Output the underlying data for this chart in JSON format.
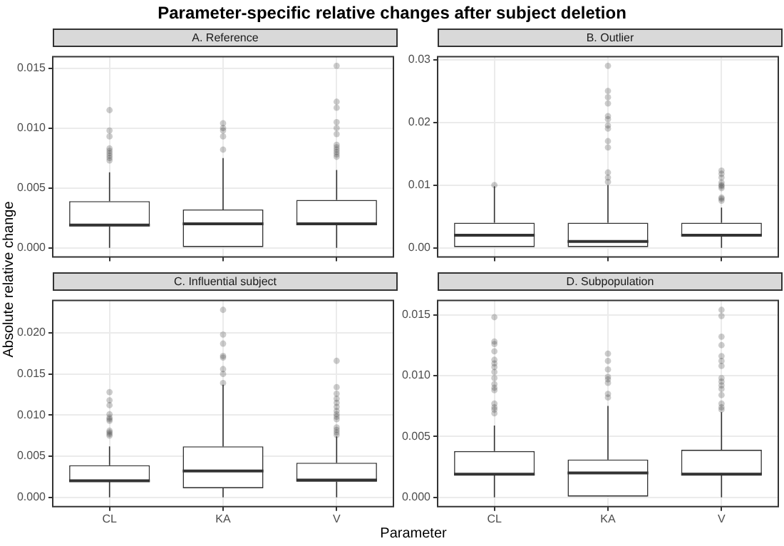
{
  "chart_data": [
    {
      "type": "box",
      "title": "Parameter-specific relative changes after subject deletion",
      "subtitle": "A. Reference",
      "xlabel": "Parameter",
      "ylabel": "Absolute relative change",
      "categories": [
        null,
        null,
        null
      ],
      "color": "#333333",
      "tick_labels": "y",
      "grid": true,
      "boxes": [
        {
          "low": 0,
          "q1": 0.0018,
          "median": 0.0019,
          "q3": 0.0039,
          "high": 0.0063,
          "outliers": [
            0.0073,
            0.0075,
            0.0077,
            0.0079,
            0.0081,
            0.0083,
            0.0093,
            0.0098,
            0.0115
          ]
        },
        {
          "low": 0,
          "q1": 0,
          "median": 0.002,
          "q3": 0.0032,
          "high": 0.0075,
          "outliers": [
            0.0082,
            0.0093,
            0.0098,
            0.01,
            0.0104
          ]
        },
        {
          "low": 0,
          "q1": 0.0019,
          "median": 0.002,
          "q3": 0.004,
          "high": 0.0065,
          "outliers": [
            0.0076,
            0.0078,
            0.008,
            0.0082,
            0.0084,
            0.0086,
            0.0095,
            0.01,
            0.0105,
            0.0117,
            0.0122,
            0.0152
          ]
        }
      ],
      "ylim": [
        -0.00076,
        0.01596
      ],
      "yticks": [
        {
          "value": 0,
          "label": "0.000"
        },
        {
          "value": 0.005,
          "label": "0.005"
        },
        {
          "value": 0.01,
          "label": "0.010"
        },
        {
          "value": 0.015,
          "label": "0.015"
        }
      ]
    },
    {
      "type": "box",
      "subtitle": "B. Outlier",
      "categories": [
        null,
        null,
        null
      ],
      "color": "#333333",
      "tick_labels": "y",
      "grid": true,
      "boxes": [
        {
          "low": 0,
          "q1": 0,
          "median": 0.002,
          "q3": 0.004,
          "high": 0.0098,
          "outliers": [
            0.01
          ]
        },
        {
          "low": 0,
          "q1": 0,
          "median": 0.001,
          "q3": 0.004,
          "high": 0.01,
          "outliers": [
            0.0105,
            0.0112,
            0.012,
            0.016,
            0.017,
            0.019,
            0.0195,
            0.0205,
            0.021,
            0.023,
            0.024,
            0.025,
            0.029
          ]
        },
        {
          "low": 0,
          "q1": 0.002,
          "median": 0.002,
          "q3": 0.004,
          "high": 0.0064,
          "outliers": [
            0.0075,
            0.0078,
            0.008,
            0.0095,
            0.0098,
            0.01,
            0.0104,
            0.0112,
            0.0118,
            0.0123
          ]
        }
      ],
      "ylim": [
        -0.00145,
        0.03045
      ],
      "yticks": [
        {
          "value": 0,
          "label": "0.00"
        },
        {
          "value": 0.01,
          "label": "0.01"
        },
        {
          "value": 0.02,
          "label": "0.02"
        },
        {
          "value": 0.03,
          "label": "0.03"
        }
      ]
    },
    {
      "type": "box",
      "subtitle": "C. Influential subject",
      "categories": [
        "CL",
        "KA",
        "V"
      ],
      "color": "#333333",
      "grid": true,
      "boxes": [
        {
          "low": 0,
          "q1": 0.0019,
          "median": 0.002,
          "q3": 0.0039,
          "high": 0.0062,
          "outliers": [
            0.0075,
            0.0077,
            0.0079,
            0.0081,
            0.0093,
            0.0095,
            0.0097,
            0.0101,
            0.0112,
            0.0118,
            0.0128
          ]
        },
        {
          "low": 0,
          "q1": 0.0011,
          "median": 0.0032,
          "q3": 0.0062,
          "high": 0.0137,
          "outliers": [
            0.0139,
            0.015,
            0.0156,
            0.017,
            0.0172,
            0.0187,
            0.0198,
            0.0228
          ]
        },
        {
          "low": 0,
          "q1": 0.0019,
          "median": 0.0021,
          "q3": 0.0042,
          "high": 0.0074,
          "outliers": [
            0.0076,
            0.0079,
            0.0082,
            0.0085,
            0.0095,
            0.0098,
            0.0101,
            0.0105,
            0.011,
            0.0115,
            0.012,
            0.0126,
            0.0134,
            0.0166
          ]
        }
      ],
      "ylim": [
        -0.00114,
        0.02394
      ],
      "yticks": [
        {
          "value": 0,
          "label": "0.000"
        },
        {
          "value": 0.005,
          "label": "0.005"
        },
        {
          "value": 0.01,
          "label": "0.010"
        },
        {
          "value": 0.015,
          "label": "0.015"
        },
        {
          "value": 0.02,
          "label": "0.020"
        }
      ]
    },
    {
      "type": "box",
      "subtitle": "D. Subpopulation",
      "categories": [
        "CL",
        "KA",
        "V"
      ],
      "color": "#333333",
      "grid": true,
      "boxes": [
        {
          "low": 0,
          "q1": 0.0018,
          "median": 0.0019,
          "q3": 0.0038,
          "high": 0.0059,
          "outliers": [
            0.0069,
            0.0072,
            0.0074,
            0.0077,
            0.0088,
            0.009,
            0.0093,
            0.0098,
            0.0103,
            0.0107,
            0.011,
            0.0113,
            0.012,
            0.0126,
            0.0128,
            0.0148
          ]
        },
        {
          "low": 0,
          "q1": 0,
          "median": 0.002,
          "q3": 0.0031,
          "high": 0.0075,
          "outliers": [
            0.0082,
            0.0085,
            0.0094,
            0.0097,
            0.0099,
            0.0105,
            0.0112,
            0.0118
          ]
        },
        {
          "low": 0,
          "q1": 0.0019,
          "median": 0.0019,
          "q3": 0.0039,
          "high": 0.007,
          "outliers": [
            0.0072,
            0.0074,
            0.0077,
            0.0084,
            0.0089,
            0.0092,
            0.0095,
            0.0098,
            0.0108,
            0.0112,
            0.0116,
            0.0125,
            0.0132,
            0.0149,
            0.0154
          ]
        }
      ],
      "ylim": [
        -0.00077,
        0.01617
      ],
      "yticks": [
        {
          "value": 0,
          "label": "0.000"
        },
        {
          "value": 0.005,
          "label": "0.005"
        },
        {
          "value": 0.01,
          "label": "0.010"
        },
        {
          "value": 0.015,
          "label": "0.015"
        }
      ]
    }
  ]
}
